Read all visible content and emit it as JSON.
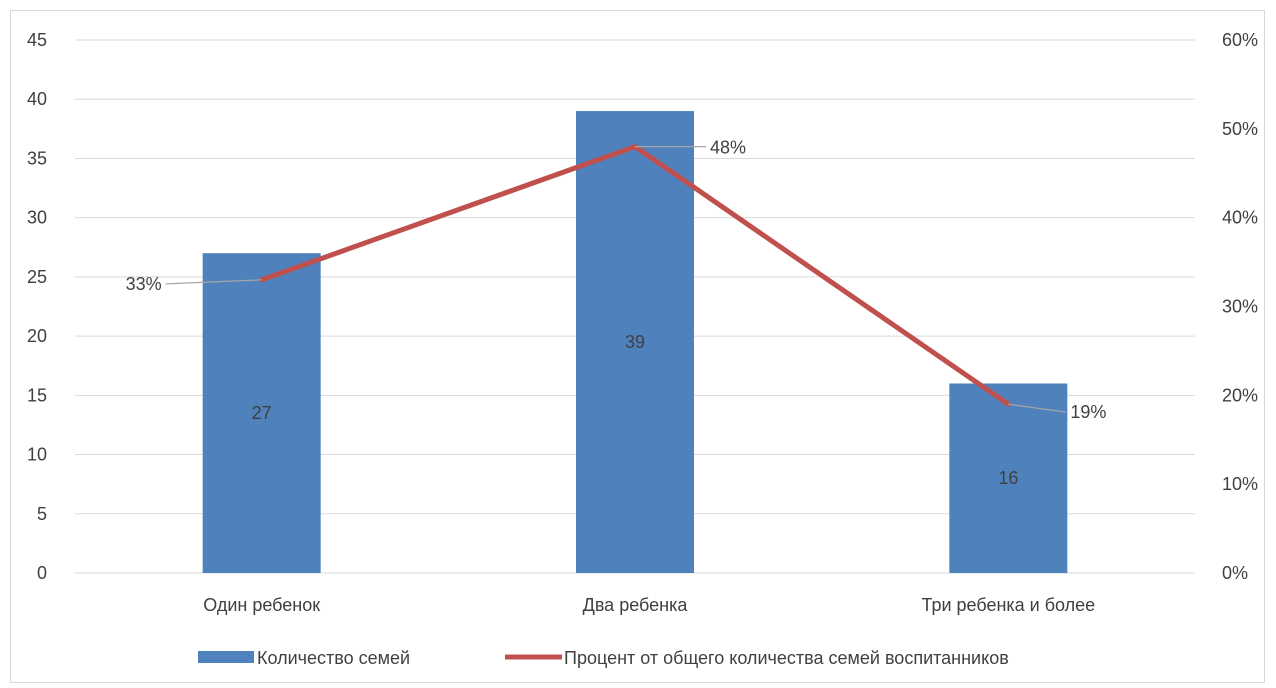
{
  "chart_data": {
    "type": "bar",
    "categories": [
      "Один ребенок",
      "Два ребенка",
      "Три ребенка и более"
    ],
    "series": [
      {
        "name": "Количество семей",
        "type": "bar",
        "axis": "left",
        "color": "#4f81bd",
        "values": [
          27,
          39,
          16
        ],
        "labels": [
          "27",
          "39",
          "16"
        ]
      },
      {
        "name": "Процент от общего количества семей воспитанников",
        "type": "line",
        "axis": "right",
        "color": "#c0504d",
        "values": [
          0.33,
          0.48,
          0.19
        ],
        "labels": [
          "33%",
          "48%",
          "19%"
        ]
      }
    ],
    "left_axis": {
      "range": [
        0,
        45
      ],
      "ticks": [
        "0",
        "5",
        "10",
        "15",
        "20",
        "25",
        "30",
        "35",
        "40",
        "45"
      ]
    },
    "right_axis": {
      "range": [
        0,
        0.6
      ],
      "ticks": [
        "0%",
        "10%",
        "20%",
        "30%",
        "40%",
        "50%",
        "60%"
      ]
    },
    "title": "",
    "xlabel": "",
    "ylabel": "",
    "grid": true,
    "legend_position": "bottom"
  }
}
